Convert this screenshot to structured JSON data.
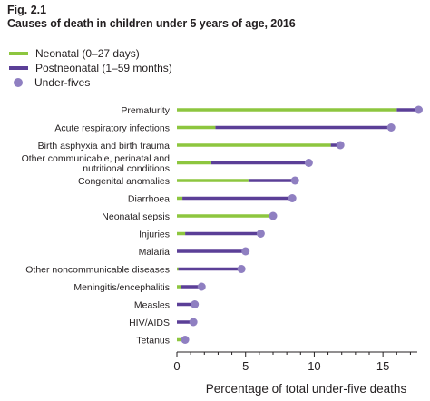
{
  "figure": {
    "label": "Fig. 2.1",
    "title": "Causes of death in children under 5 years of age, 2016"
  },
  "colors": {
    "neonatal": "#8dc63f",
    "postneonatal": "#5b3f97",
    "under_fives": "#8f7fc1",
    "axis": "#231f20"
  },
  "chart_data": {
    "type": "dot-bar",
    "title": "Causes of death in children under 5 years of age, 2016",
    "xlabel": "Percentage of total under-five deaths",
    "xlim": [
      0,
      17.5
    ],
    "xticks": [
      0,
      5,
      10,
      15
    ],
    "legend": {
      "placement": "top-left"
    },
    "series": [
      {
        "key": "neonatal",
        "name": "Neonatal (0–27 days)"
      },
      {
        "key": "postneonatal",
        "name": "Postneonatal (1–59 months)"
      },
      {
        "key": "under_fives",
        "name": "Under-fives"
      }
    ],
    "categories": [
      {
        "label": "Prematurity",
        "neonatal": 16.0,
        "under_fives": 17.6
      },
      {
        "label": "Acute respiratory infections",
        "neonatal": 2.8,
        "under_fives": 15.6
      },
      {
        "label": "Birth asphyxia and birth trauma",
        "neonatal": 11.2,
        "under_fives": 11.9
      },
      {
        "label": "Other communicable, perinatal and nutritional conditions",
        "label_lines": [
          "Other communicable, perinatal and",
          "nutritional conditions"
        ],
        "neonatal": 2.5,
        "under_fives": 9.6
      },
      {
        "label": "Congenital anomalies",
        "neonatal": 5.2,
        "under_fives": 8.6
      },
      {
        "label": "Diarrhoea",
        "neonatal": 0.4,
        "under_fives": 8.4
      },
      {
        "label": "Neonatal sepsis",
        "neonatal": 6.9,
        "under_fives": 7.0
      },
      {
        "label": "Injuries",
        "neonatal": 0.6,
        "under_fives": 6.1
      },
      {
        "label": "Malaria",
        "neonatal": 0.0,
        "under_fives": 5.0
      },
      {
        "label": "Other noncommunicable diseases",
        "neonatal": 0.1,
        "under_fives": 4.7
      },
      {
        "label": "Meningitis/encephalitis",
        "neonatal": 0.3,
        "under_fives": 1.8
      },
      {
        "label": "Measles",
        "neonatal": 0.0,
        "under_fives": 1.3
      },
      {
        "label": "HIV/AIDS",
        "neonatal": 0.0,
        "under_fives": 1.2
      },
      {
        "label": "Tetanus",
        "neonatal": 0.3,
        "under_fives": 0.6
      }
    ]
  }
}
